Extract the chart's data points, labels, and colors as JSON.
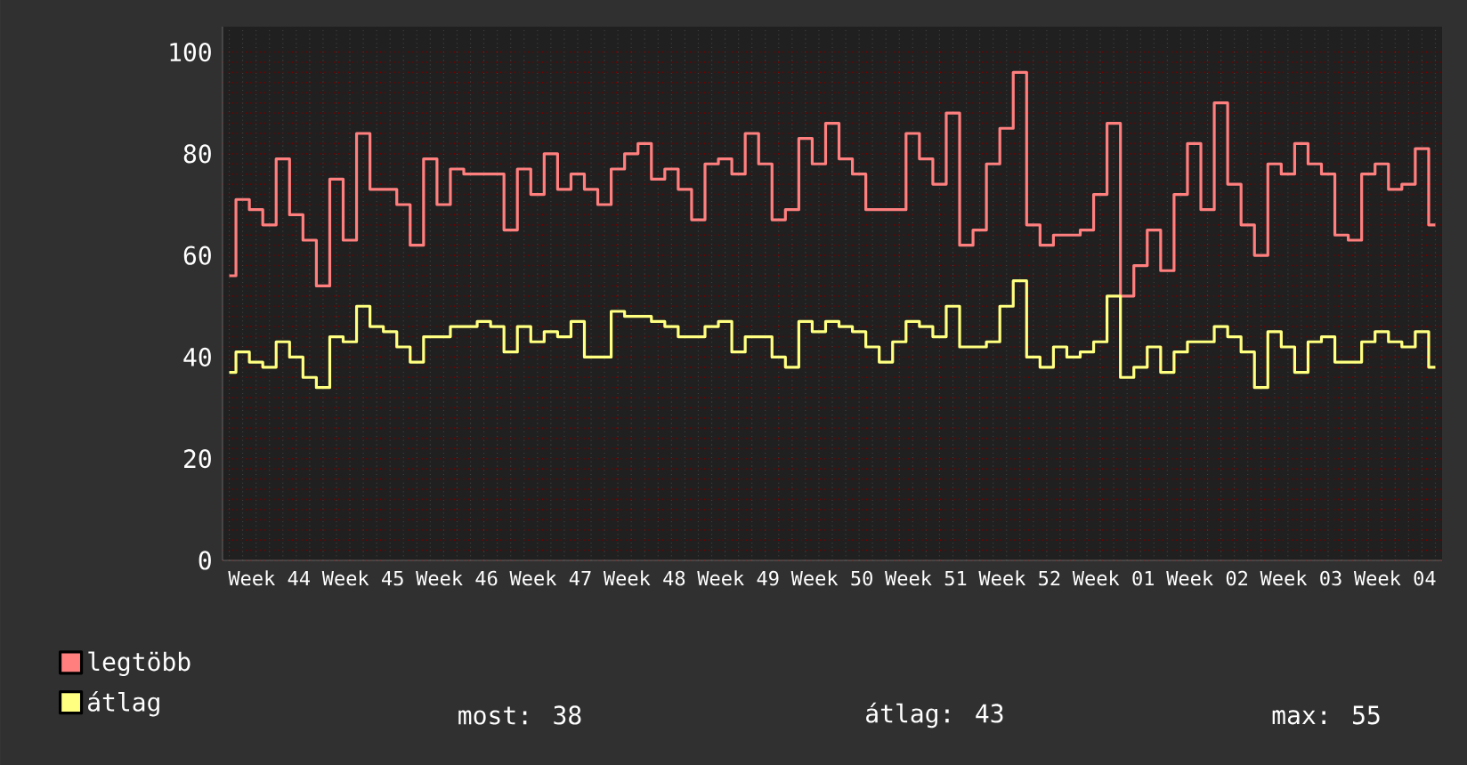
{
  "chart_data": {
    "type": "step",
    "ylim": [
      0,
      105
    ],
    "yticks": [
      0,
      20,
      40,
      60,
      80,
      100
    ],
    "categories": [
      null,
      null,
      null,
      "Week 44",
      null,
      null,
      null,
      null,
      null,
      null,
      "Week 45",
      null,
      null,
      null,
      null,
      null,
      null,
      "Week 46",
      null,
      null,
      null,
      null,
      null,
      null,
      "Week 47",
      null,
      null,
      null,
      null,
      null,
      null,
      "Week 48",
      null,
      null,
      null,
      null,
      null,
      null,
      "Week 49",
      null,
      null,
      null,
      null,
      null,
      null,
      "Week 50",
      null,
      null,
      null,
      null,
      null,
      null,
      "Week 51",
      null,
      null,
      null,
      null,
      null,
      null,
      "Week 52",
      null,
      null,
      null,
      null,
      null,
      null,
      "Week 01",
      null,
      null,
      null,
      null,
      null,
      null,
      "Week 02",
      null,
      null,
      null,
      null,
      null,
      null,
      "Week 03",
      null,
      null,
      null,
      null,
      null,
      null,
      "Week 04",
      null,
      null,
      null
    ],
    "grid": true,
    "legend": "bottom",
    "series": [
      {
        "name": "legtöbb",
        "color": "#ff7f7f",
        "values": [
          56,
          71,
          69,
          66,
          79,
          68,
          63,
          54,
          75,
          63,
          84,
          73,
          73,
          70,
          62,
          79,
          70,
          77,
          76,
          76,
          76,
          65,
          77,
          72,
          80,
          73,
          76,
          73,
          70,
          77,
          80,
          82,
          75,
          77,
          73,
          67,
          78,
          79,
          76,
          84,
          78,
          67,
          69,
          83,
          78,
          86,
          79,
          76,
          69,
          69,
          69,
          84,
          79,
          74,
          88,
          62,
          65,
          78,
          85,
          96,
          66,
          62,
          64,
          64,
          65,
          72,
          86,
          52,
          58,
          65,
          57,
          72,
          82,
          69,
          90,
          74,
          66,
          60,
          78,
          76,
          82,
          78,
          76,
          64,
          63,
          76,
          78,
          73,
          74,
          81,
          66
        ]
      },
      {
        "name": "átlag",
        "color": "#ffff80",
        "values": [
          37,
          41,
          39,
          38,
          43,
          40,
          36,
          34,
          44,
          43,
          50,
          46,
          45,
          42,
          39,
          44,
          44,
          46,
          46,
          47,
          46,
          41,
          46,
          43,
          45,
          44,
          47,
          40,
          40,
          49,
          48,
          48,
          47,
          46,
          44,
          44,
          46,
          47,
          41,
          44,
          44,
          40,
          38,
          47,
          45,
          47,
          46,
          45,
          42,
          39,
          43,
          47,
          46,
          44,
          50,
          42,
          42,
          43,
          50,
          55,
          40,
          38,
          42,
          40,
          41,
          43,
          52,
          36,
          38,
          42,
          37,
          41,
          43,
          43,
          46,
          44,
          41,
          34,
          45,
          42,
          37,
          43,
          44,
          39,
          39,
          43,
          45,
          43,
          42,
          45,
          38
        ]
      }
    ],
    "annotations": [
      "most: 38",
      "átlag: 43",
      "max: 55"
    ]
  }
}
